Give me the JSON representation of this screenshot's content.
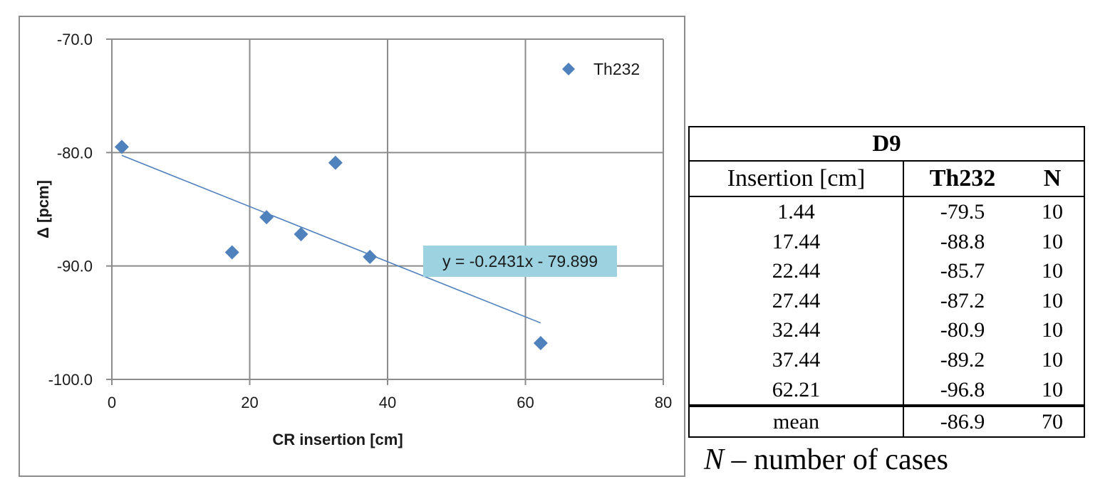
{
  "chart_data": {
    "type": "scatter",
    "title": "",
    "xlabel": "CR insertion [cm]",
    "ylabel": "Δ [pcm]",
    "xlim": [
      0,
      80
    ],
    "ylim": [
      -100,
      -70
    ],
    "x_ticks": [
      "0",
      "20",
      "40",
      "60",
      "80"
    ],
    "y_ticks": [
      "-70.0",
      "-80.0",
      "-90.0",
      "-100.0"
    ],
    "grid": true,
    "legend_position": "top-right",
    "series": [
      {
        "name": "Th232",
        "color": "#4f81bd",
        "marker": "diamond",
        "x": [
          1.44,
          17.44,
          22.44,
          27.44,
          32.44,
          37.44,
          62.21
        ],
        "y": [
          -79.5,
          -88.8,
          -85.7,
          -87.2,
          -80.9,
          -89.2,
          -96.8
        ]
      }
    ],
    "trendline": {
      "type": "linear",
      "slope": -0.2431,
      "intercept": -79.899,
      "x_range": [
        1.44,
        62.21
      ],
      "color": "#4f81bd",
      "equation_label": "y = -0.2431x - 79.899",
      "label_background": "#9dd3e0"
    }
  },
  "table": {
    "title": "D9",
    "headers": [
      "Insertion [cm]",
      "Th232",
      "N"
    ],
    "rows": [
      [
        "1.44",
        "-79.5",
        "10"
      ],
      [
        "17.44",
        "-88.8",
        "10"
      ],
      [
        "22.44",
        "-85.7",
        "10"
      ],
      [
        "27.44",
        "-87.2",
        "10"
      ],
      [
        "32.44",
        "-80.9",
        "10"
      ],
      [
        "37.44",
        "-89.2",
        "10"
      ],
      [
        "62.21",
        "-96.8",
        "10"
      ]
    ],
    "mean_row": [
      "mean",
      "-86.9",
      "70"
    ]
  },
  "note": {
    "variable": "N",
    "text": " – number of cases"
  }
}
